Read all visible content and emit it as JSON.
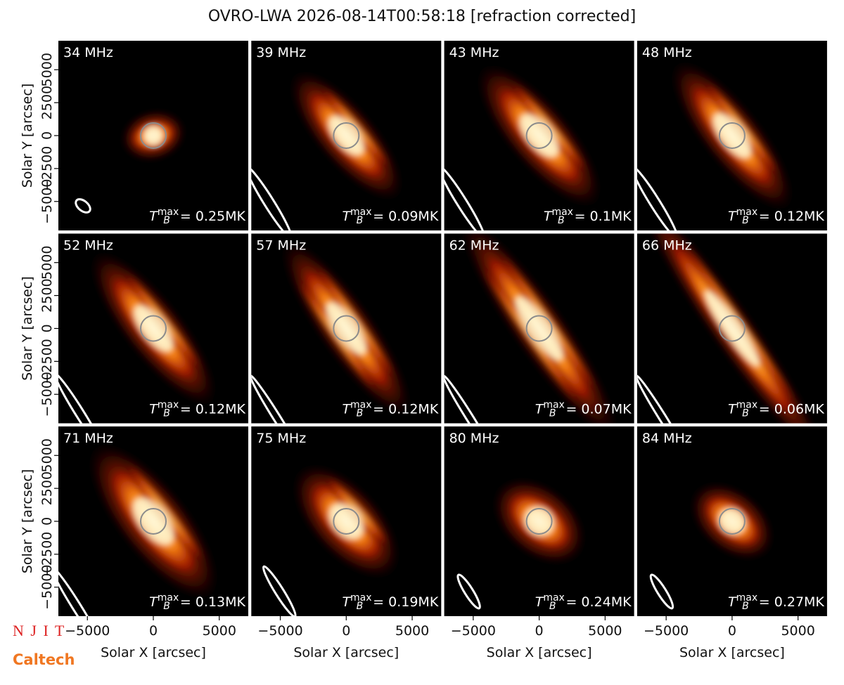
{
  "chart_data": {
    "type": "image-grid",
    "title": "OVRO-LWA 2026-08-14T00:58:18 [refraction corrected]",
    "x_label": "Solar X [arcsec]",
    "y_label": "Solar Y [arcsec]",
    "xlim": [
      -7200,
      7200
    ],
    "ylim": [
      -7200,
      7200
    ],
    "xticks": [
      {
        "value": -5000,
        "label": "−5000"
      },
      0,
      5000
    ],
    "yticks": [
      {
        "value": -5000,
        "label": "−5000"
      },
      {
        "value": -2500,
        "label": "−2500"
      },
      0,
      2500,
      5000
    ],
    "tb_symbol": "T",
    "tb_sub": "B",
    "tb_sup": "max",
    "panels": [
      {
        "freq": "34 MHz",
        "tb": "= 0.25MK"
      },
      {
        "freq": "39 MHz",
        "tb": "= 0.09MK"
      },
      {
        "freq": "43 MHz",
        "tb": "= 0.1MK"
      },
      {
        "freq": "48 MHz",
        "tb": "= 0.12MK"
      },
      {
        "freq": "52 MHz",
        "tb": "= 0.12MK"
      },
      {
        "freq": "57 MHz",
        "tb": "= 0.12MK"
      },
      {
        "freq": "62 MHz",
        "tb": "= 0.07MK"
      },
      {
        "freq": "66 MHz",
        "tb": "= 0.06MK"
      },
      {
        "freq": "71 MHz",
        "tb": "= 0.13MK"
      },
      {
        "freq": "75 MHz",
        "tb": "= 0.19MK"
      },
      {
        "freq": "80 MHz",
        "tb": "= 0.24MK"
      },
      {
        "freq": "84 MHz",
        "tb": "= 0.27MK"
      }
    ],
    "logos": [
      "N J I T",
      "Caltech"
    ]
  }
}
